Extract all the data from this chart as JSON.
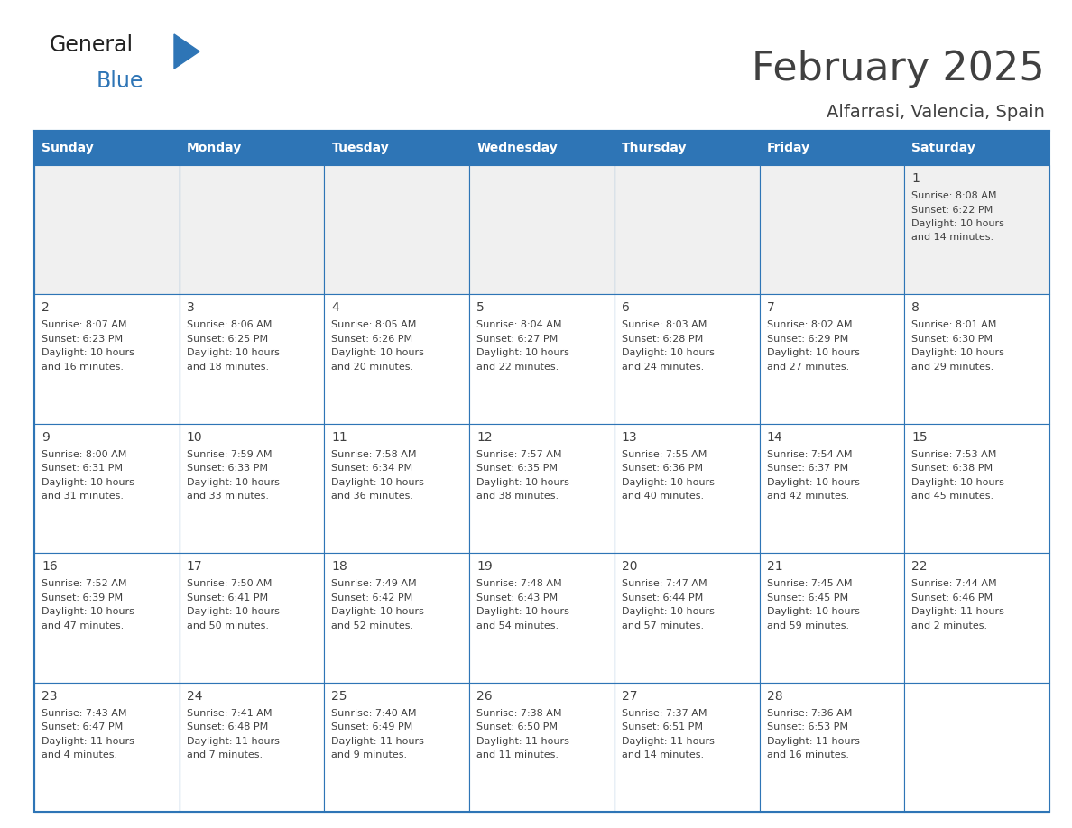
{
  "title": "February 2025",
  "subtitle": "Alfarrasi, Valencia, Spain",
  "header_color": "#2E75B6",
  "header_text_color": "#FFFFFF",
  "day_names": [
    "Sunday",
    "Monday",
    "Tuesday",
    "Wednesday",
    "Thursday",
    "Friday",
    "Saturday"
  ],
  "border_color": "#2E75B6",
  "cell_border_color": "#2E75B6",
  "text_color": "#404040",
  "day_number_color": "#404040",
  "background_color": "#FFFFFF",
  "row1_bg": "#F0F0F0",
  "calendar_data": {
    "1": {
      "sunrise": "8:08 AM",
      "sunset": "6:22 PM",
      "daylight_hours": 10,
      "daylight_minutes": 14
    },
    "2": {
      "sunrise": "8:07 AM",
      "sunset": "6:23 PM",
      "daylight_hours": 10,
      "daylight_minutes": 16
    },
    "3": {
      "sunrise": "8:06 AM",
      "sunset": "6:25 PM",
      "daylight_hours": 10,
      "daylight_minutes": 18
    },
    "4": {
      "sunrise": "8:05 AM",
      "sunset": "6:26 PM",
      "daylight_hours": 10,
      "daylight_minutes": 20
    },
    "5": {
      "sunrise": "8:04 AM",
      "sunset": "6:27 PM",
      "daylight_hours": 10,
      "daylight_minutes": 22
    },
    "6": {
      "sunrise": "8:03 AM",
      "sunset": "6:28 PM",
      "daylight_hours": 10,
      "daylight_minutes": 24
    },
    "7": {
      "sunrise": "8:02 AM",
      "sunset": "6:29 PM",
      "daylight_hours": 10,
      "daylight_minutes": 27
    },
    "8": {
      "sunrise": "8:01 AM",
      "sunset": "6:30 PM",
      "daylight_hours": 10,
      "daylight_minutes": 29
    },
    "9": {
      "sunrise": "8:00 AM",
      "sunset": "6:31 PM",
      "daylight_hours": 10,
      "daylight_minutes": 31
    },
    "10": {
      "sunrise": "7:59 AM",
      "sunset": "6:33 PM",
      "daylight_hours": 10,
      "daylight_minutes": 33
    },
    "11": {
      "sunrise": "7:58 AM",
      "sunset": "6:34 PM",
      "daylight_hours": 10,
      "daylight_minutes": 36
    },
    "12": {
      "sunrise": "7:57 AM",
      "sunset": "6:35 PM",
      "daylight_hours": 10,
      "daylight_minutes": 38
    },
    "13": {
      "sunrise": "7:55 AM",
      "sunset": "6:36 PM",
      "daylight_hours": 10,
      "daylight_minutes": 40
    },
    "14": {
      "sunrise": "7:54 AM",
      "sunset": "6:37 PM",
      "daylight_hours": 10,
      "daylight_minutes": 42
    },
    "15": {
      "sunrise": "7:53 AM",
      "sunset": "6:38 PM",
      "daylight_hours": 10,
      "daylight_minutes": 45
    },
    "16": {
      "sunrise": "7:52 AM",
      "sunset": "6:39 PM",
      "daylight_hours": 10,
      "daylight_minutes": 47
    },
    "17": {
      "sunrise": "7:50 AM",
      "sunset": "6:41 PM",
      "daylight_hours": 10,
      "daylight_minutes": 50
    },
    "18": {
      "sunrise": "7:49 AM",
      "sunset": "6:42 PM",
      "daylight_hours": 10,
      "daylight_minutes": 52
    },
    "19": {
      "sunrise": "7:48 AM",
      "sunset": "6:43 PM",
      "daylight_hours": 10,
      "daylight_minutes": 54
    },
    "20": {
      "sunrise": "7:47 AM",
      "sunset": "6:44 PM",
      "daylight_hours": 10,
      "daylight_minutes": 57
    },
    "21": {
      "sunrise": "7:45 AM",
      "sunset": "6:45 PM",
      "daylight_hours": 10,
      "daylight_minutes": 59
    },
    "22": {
      "sunrise": "7:44 AM",
      "sunset": "6:46 PM",
      "daylight_hours": 11,
      "daylight_minutes": 2
    },
    "23": {
      "sunrise": "7:43 AM",
      "sunset": "6:47 PM",
      "daylight_hours": 11,
      "daylight_minutes": 4
    },
    "24": {
      "sunrise": "7:41 AM",
      "sunset": "6:48 PM",
      "daylight_hours": 11,
      "daylight_minutes": 7
    },
    "25": {
      "sunrise": "7:40 AM",
      "sunset": "6:49 PM",
      "daylight_hours": 11,
      "daylight_minutes": 9
    },
    "26": {
      "sunrise": "7:38 AM",
      "sunset": "6:50 PM",
      "daylight_hours": 11,
      "daylight_minutes": 11
    },
    "27": {
      "sunrise": "7:37 AM",
      "sunset": "6:51 PM",
      "daylight_hours": 11,
      "daylight_minutes": 14
    },
    "28": {
      "sunrise": "7:36 AM",
      "sunset": "6:53 PM",
      "daylight_hours": 11,
      "daylight_minutes": 16
    }
  },
  "logo_text1": "General",
  "logo_text2": "Blue",
  "logo_color1": "#222222",
  "logo_color2": "#2E75B6",
  "logo_triangle_color": "#2E75B6"
}
